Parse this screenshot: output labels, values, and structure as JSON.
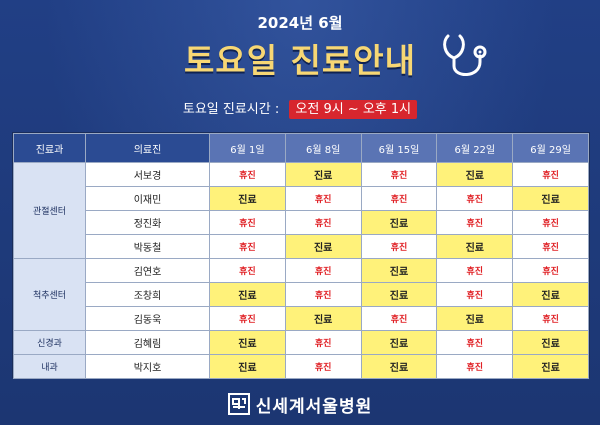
{
  "header": {
    "year_month": "2024년 6월",
    "title": "토요일 진료안내",
    "hours_label": "토요일 진료시간 :",
    "hours_value": "오전 9시 ~ 오후 1시"
  },
  "table": {
    "columns": [
      "진료과",
      "의료진",
      "6월 1일",
      "6월 8일",
      "6월 15일",
      "6월 22일",
      "6월 29일"
    ],
    "departments": [
      {
        "name": "관절센터",
        "rowspan": 4
      },
      {
        "name": "척추센터",
        "rowspan": 3
      },
      {
        "name": "신경과",
        "rowspan": 1
      },
      {
        "name": "내과",
        "rowspan": 1
      }
    ],
    "rows": [
      {
        "doctor": "서보경",
        "days": [
          "휴진",
          "진료",
          "휴진",
          "진료",
          "휴진"
        ]
      },
      {
        "doctor": "이재민",
        "days": [
          "진료",
          "휴진",
          "휴진",
          "휴진",
          "진료"
        ]
      },
      {
        "doctor": "정진화",
        "days": [
          "휴진",
          "휴진",
          "진료",
          "휴진",
          "휴진"
        ]
      },
      {
        "doctor": "박동철",
        "days": [
          "휴진",
          "진료",
          "휴진",
          "진료",
          "휴진"
        ]
      },
      {
        "doctor": "김연호",
        "days": [
          "휴진",
          "휴진",
          "진료",
          "휴진",
          "휴진"
        ]
      },
      {
        "doctor": "조창희",
        "days": [
          "진료",
          "휴진",
          "진료",
          "휴진",
          "진료"
        ]
      },
      {
        "doctor": "김동욱",
        "days": [
          "휴진",
          "진료",
          "휴진",
          "진료",
          "휴진"
        ]
      },
      {
        "doctor": "김혜림",
        "days": [
          "진료",
          "휴진",
          "진료",
          "휴진",
          "진료"
        ]
      },
      {
        "doctor": "박지호",
        "days": [
          "진료",
          "휴진",
          "진료",
          "휴진",
          "진료"
        ]
      }
    ],
    "open_label": "진료",
    "closed_label": "휴진"
  },
  "footer": {
    "hospital_name": "신세계서울병원"
  },
  "colors": {
    "background": "#1f3a7a",
    "title": "#f7d774",
    "open_fill": "#fff27a",
    "closed_text": "#e02126",
    "hours_badge": "#d7262e"
  }
}
